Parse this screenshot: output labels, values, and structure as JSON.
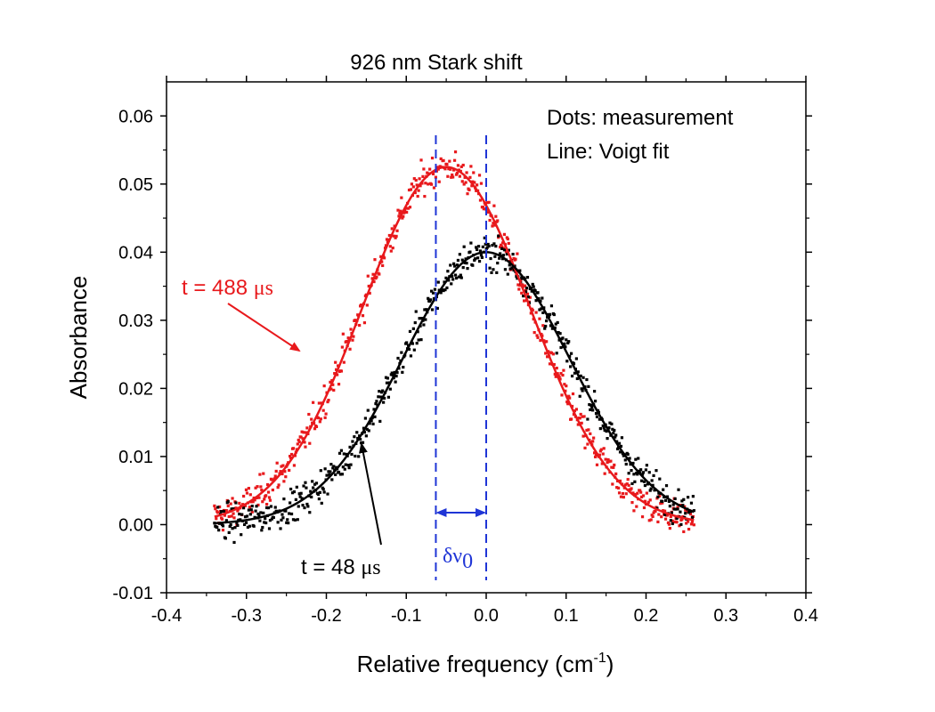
{
  "chart_data": {
    "type": "scatter",
    "title": "926 nm Stark shift",
    "xlabel": "Relative frequency (cm",
    "xlabel_sup": "-1",
    "xlabel_close": ")",
    "ylabel": "Absorbance",
    "xlim": [
      -0.4,
      0.4
    ],
    "ylim": [
      -0.01,
      0.065
    ],
    "x_ticks": [
      -0.4,
      -0.3,
      -0.2,
      -0.1,
      0.0,
      0.1,
      0.2,
      0.3,
      0.4
    ],
    "x_tick_labels": [
      "-0.4",
      "-0.3",
      "-0.2",
      "-0.1",
      "0.0",
      "0.1",
      "0.2",
      "0.3",
      "0.4"
    ],
    "y_ticks": [
      -0.01,
      0.0,
      0.01,
      0.02,
      0.03,
      0.04,
      0.05,
      0.06
    ],
    "y_tick_labels": [
      "-0.01",
      "0.00",
      "0.01",
      "0.02",
      "0.03",
      "0.04",
      "0.05",
      "0.06"
    ],
    "grid": false,
    "legend_lines": [
      "Dots: measurement",
      "Line: Voigt fit"
    ],
    "legend_placement": "top-right",
    "series": [
      {
        "label": "t = 488 μs",
        "color": "#e8191c",
        "fit": {
          "center": -0.05,
          "amplitude": 0.0525,
          "sigma": 0.105,
          "baseline": 0.0
        },
        "fit_x": [
          -0.34,
          -0.3,
          -0.25,
          -0.2,
          -0.15,
          -0.1,
          -0.05,
          0.0,
          0.05,
          0.1,
          0.15,
          0.2,
          0.25,
          0.26
        ],
        "fit_y": [
          0.0063,
          0.0105,
          0.0178,
          0.028,
          0.039,
          0.048,
          0.0525,
          0.0475,
          0.0355,
          0.0225,
          0.013,
          0.008,
          0.0048,
          0.0045
        ]
      },
      {
        "label": "t = 48 μs",
        "color": "#000000",
        "fit": {
          "center": 0.0,
          "amplitude": 0.04,
          "sigma": 0.105,
          "baseline": 0.0
        },
        "fit_x": [
          -0.34,
          -0.3,
          -0.25,
          -0.2,
          -0.15,
          -0.1,
          -0.05,
          0.0,
          0.05,
          0.1,
          0.15,
          0.2,
          0.25,
          0.26
        ],
        "fit_y": [
          0.0015,
          0.0025,
          0.005,
          0.0085,
          0.015,
          0.026,
          0.036,
          0.04,
          0.036,
          0.026,
          0.0165,
          0.01,
          0.006,
          0.005
        ]
      }
    ],
    "marker": {
      "label": "δν",
      "sub": "0",
      "x1": -0.063,
      "x2": 0.0,
      "color": "#1f35d6"
    },
    "annotations": [
      {
        "text": "t = 488 ",
        "unit": "μs",
        "color": "#e8191c"
      },
      {
        "text": "t = 48 ",
        "unit": "μs",
        "color": "#000000"
      }
    ]
  }
}
